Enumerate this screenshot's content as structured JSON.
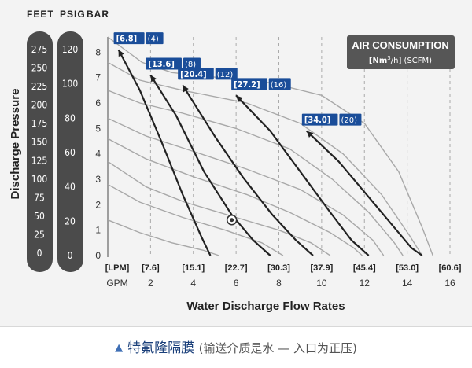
{
  "unit_headers": {
    "feet": "FEET",
    "psig": "PSIG",
    "bar": "BAR"
  },
  "y_axis_label": "Discharge Pressure",
  "x_axis_label": "Water Discharge Flow Rates",
  "air_box": {
    "title": "AIR CONSUMPTION",
    "subtitle_prefix": "[Nm",
    "subtitle_sup": "3",
    "subtitle_suffix": "/h] (SCFM)"
  },
  "caption": {
    "title": "特氟隆隔膜",
    "note": "(输送介质是水 — 入口为正压)"
  },
  "colors": {
    "navy": "#1a4d99",
    "curve": "#222222",
    "grid": "#aaaaaa",
    "bar_bg": "#4b4b4b",
    "box_bg": "#565656"
  },
  "chart_data": {
    "type": "line",
    "feet_ticks": [
      "275",
      "250",
      "225",
      "200",
      "175",
      "150",
      "125",
      "100",
      "75",
      "50",
      "25",
      "0"
    ],
    "psig_ticks": [
      "120",
      "100",
      "80",
      "60",
      "40",
      "20",
      "0"
    ],
    "bar_ticks": [
      "8",
      "7",
      "6",
      "5",
      "4",
      "3",
      "2",
      "1",
      "0"
    ],
    "lpm_ticks": [
      "[LPM]",
      "[7.6]",
      "[15.1]",
      "[22.7]",
      "[30.3]",
      "[37.9]",
      "[45.4]",
      "[53.0]",
      "[60.6]"
    ],
    "gpm_ticks": [
      "GPM",
      "2",
      "4",
      "6",
      "8",
      "10",
      "12",
      "14",
      "16"
    ],
    "xlim": [
      0,
      16
    ],
    "ylim": [
      0,
      8.6
    ],
    "performance_curves": [
      {
        "label_bracket": "[6.8]",
        "label_paren": "(4)",
        "points": [
          [
            0.5,
            8.1
          ],
          [
            1.5,
            6.5
          ],
          [
            2.5,
            4.5
          ],
          [
            3.5,
            2.4
          ],
          [
            4.4,
            0.7
          ],
          [
            4.8,
            0
          ]
        ]
      },
      {
        "label_bracket": "[13.6]",
        "label_paren": "(8)",
        "points": [
          [
            2,
            7.1
          ],
          [
            3.2,
            5.5
          ],
          [
            4.5,
            3.3
          ],
          [
            5.8,
            1.6
          ],
          [
            6.8,
            0.6
          ],
          [
            7.6,
            0
          ]
        ]
      },
      {
        "label_bracket": "[20.4]",
        "label_paren": "(12)",
        "points": [
          [
            3.5,
            6.7
          ],
          [
            5,
            4.7
          ],
          [
            6.3,
            3.1
          ],
          [
            7.7,
            1.6
          ],
          [
            8.8,
            0.6
          ],
          [
            9.6,
            0
          ]
        ]
      },
      {
        "label_bracket": "[27.2]",
        "label_paren": "(16)",
        "points": [
          [
            6,
            6.3
          ],
          [
            7.6,
            4.9
          ],
          [
            9,
            3.3
          ],
          [
            10.4,
            1.7
          ],
          [
            11.4,
            0.6
          ],
          [
            12.2,
            0
          ]
        ]
      },
      {
        "label_bracket": "[34.0]",
        "label_paren": "(20)",
        "points": [
          [
            9.3,
            4.9
          ],
          [
            10.8,
            3.7
          ],
          [
            12,
            2.5
          ],
          [
            13.3,
            1.2
          ],
          [
            14.2,
            0.3
          ],
          [
            14.7,
            0
          ]
        ]
      }
    ],
    "npshr_curves": [
      [
        [
          0,
          8.6
        ],
        [
          1.6,
          7.6
        ],
        [
          3,
          7.2
        ],
        [
          5.2,
          7
        ],
        [
          7.6,
          6.8
        ],
        [
          10,
          6.3
        ],
        [
          12,
          5.2
        ],
        [
          13.6,
          3.3
        ],
        [
          14.7,
          1.1
        ],
        [
          15.2,
          0
        ]
      ],
      [
        [
          0,
          7.6
        ],
        [
          1.5,
          6.9
        ],
        [
          3.5,
          6.5
        ],
        [
          6.5,
          6
        ],
        [
          9,
          5.2
        ],
        [
          11,
          4
        ],
        [
          12.8,
          2.4
        ],
        [
          14.1,
          0.8
        ],
        [
          14.7,
          0
        ]
      ],
      [
        [
          0,
          6.5
        ],
        [
          1.5,
          6
        ],
        [
          3.5,
          5.6
        ],
        [
          6,
          5
        ],
        [
          8.5,
          4.2
        ],
        [
          10.5,
          3
        ],
        [
          12.2,
          1.7
        ],
        [
          13.4,
          0.5
        ],
        [
          13.8,
          0
        ]
      ],
      [
        [
          0,
          5.4
        ],
        [
          1.8,
          4.7
        ],
        [
          4,
          4.1
        ],
        [
          6.5,
          3.4
        ],
        [
          9,
          2.6
        ],
        [
          11,
          1.6
        ],
        [
          12.4,
          0.6
        ],
        [
          12.9,
          0
        ]
      ],
      [
        [
          0,
          4.6
        ],
        [
          1.8,
          3.8
        ],
        [
          4,
          3.1
        ],
        [
          6.5,
          2.4
        ],
        [
          8.5,
          1.7
        ],
        [
          10.4,
          0.9
        ],
        [
          11.5,
          0.3
        ],
        [
          11.9,
          0
        ]
      ],
      [
        [
          0,
          3.7
        ],
        [
          1.8,
          2.7
        ],
        [
          3.6,
          2.1
        ],
        [
          6,
          1.5
        ],
        [
          8,
          1
        ],
        [
          9.5,
          0.5
        ],
        [
          10.4,
          0
        ]
      ],
      [
        [
          0,
          2.8
        ],
        [
          1.5,
          2.1
        ],
        [
          3.5,
          1.5
        ],
        [
          5.5,
          1
        ],
        [
          7.2,
          0.5
        ],
        [
          8.2,
          0
        ]
      ],
      [
        [
          0,
          1.4
        ],
        [
          1.5,
          0.9
        ],
        [
          3,
          0.5
        ],
        [
          4.5,
          0.2
        ],
        [
          5.2,
          0
        ]
      ]
    ],
    "marker_point": [
      5.8,
      1.4
    ]
  }
}
